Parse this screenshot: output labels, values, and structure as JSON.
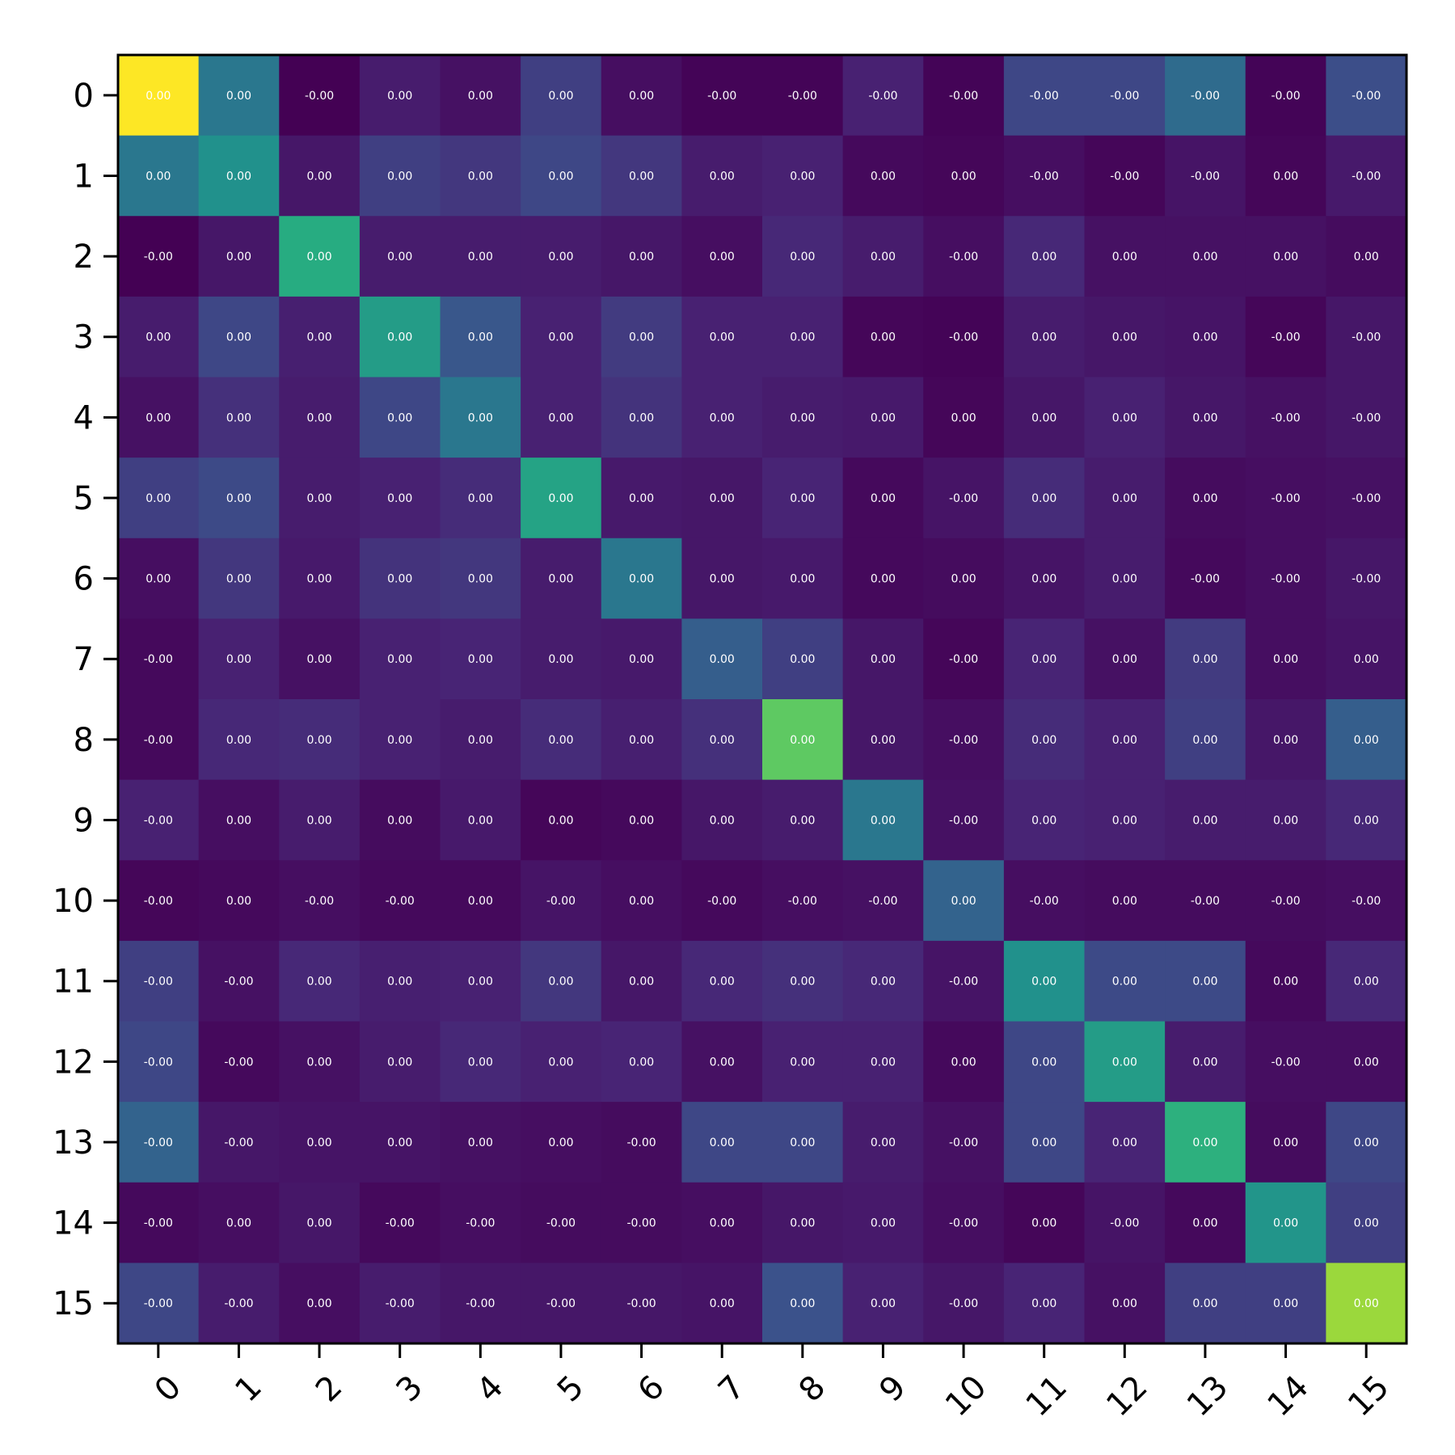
{
  "chart_data": {
    "type": "heatmap",
    "title": "",
    "xlabel": "",
    "ylabel": "",
    "x_tick_labels": [
      "0",
      "1",
      "2",
      "3",
      "4",
      "5",
      "6",
      "7",
      "8",
      "9",
      "10",
      "11",
      "12",
      "13",
      "14",
      "15"
    ],
    "y_tick_labels": [
      "0",
      "1",
      "2",
      "3",
      "4",
      "5",
      "6",
      "7",
      "8",
      "9",
      "10",
      "11",
      "12",
      "13",
      "14",
      "15"
    ],
    "colormap": "viridis",
    "value_range": [
      0,
      1
    ],
    "intensity": [
      [
        1.0,
        0.4,
        0.0,
        0.1,
        0.06,
        0.2,
        0.05,
        0.01,
        0.01,
        0.12,
        0.01,
        0.22,
        0.22,
        0.35,
        0.01,
        0.24
      ],
      [
        0.4,
        0.5,
        0.08,
        0.2,
        0.18,
        0.22,
        0.18,
        0.1,
        0.12,
        0.03,
        0.02,
        0.05,
        0.02,
        0.07,
        0.02,
        0.09
      ],
      [
        0.0,
        0.08,
        0.62,
        0.1,
        0.1,
        0.1,
        0.08,
        0.05,
        0.14,
        0.1,
        0.05,
        0.14,
        0.06,
        0.06,
        0.06,
        0.04
      ],
      [
        0.1,
        0.22,
        0.11,
        0.55,
        0.27,
        0.12,
        0.19,
        0.12,
        0.12,
        0.02,
        0.01,
        0.1,
        0.08,
        0.07,
        0.02,
        0.08
      ],
      [
        0.06,
        0.16,
        0.1,
        0.22,
        0.4,
        0.12,
        0.17,
        0.12,
        0.1,
        0.09,
        0.02,
        0.08,
        0.12,
        0.08,
        0.06,
        0.08
      ],
      [
        0.2,
        0.23,
        0.1,
        0.12,
        0.15,
        0.58,
        0.09,
        0.08,
        0.13,
        0.03,
        0.07,
        0.15,
        0.1,
        0.04,
        0.05,
        0.06
      ],
      [
        0.05,
        0.18,
        0.09,
        0.17,
        0.18,
        0.1,
        0.4,
        0.08,
        0.09,
        0.03,
        0.04,
        0.07,
        0.1,
        0.03,
        0.05,
        0.08
      ],
      [
        0.03,
        0.12,
        0.06,
        0.12,
        0.13,
        0.1,
        0.09,
        0.3,
        0.2,
        0.08,
        0.02,
        0.13,
        0.06,
        0.19,
        0.05,
        0.07
      ],
      [
        0.03,
        0.14,
        0.15,
        0.12,
        0.1,
        0.15,
        0.11,
        0.16,
        0.75,
        0.08,
        0.05,
        0.15,
        0.12,
        0.2,
        0.08,
        0.3
      ],
      [
        0.12,
        0.05,
        0.1,
        0.04,
        0.09,
        0.02,
        0.03,
        0.08,
        0.1,
        0.4,
        0.06,
        0.13,
        0.12,
        0.1,
        0.1,
        0.14
      ],
      [
        0.02,
        0.03,
        0.05,
        0.03,
        0.03,
        0.07,
        0.05,
        0.03,
        0.05,
        0.06,
        0.32,
        0.05,
        0.04,
        0.04,
        0.04,
        0.05
      ],
      [
        0.2,
        0.06,
        0.14,
        0.11,
        0.12,
        0.18,
        0.08,
        0.14,
        0.16,
        0.14,
        0.07,
        0.5,
        0.23,
        0.23,
        0.03,
        0.14
      ],
      [
        0.22,
        0.03,
        0.06,
        0.1,
        0.14,
        0.12,
        0.13,
        0.06,
        0.12,
        0.12,
        0.03,
        0.22,
        0.55,
        0.1,
        0.05,
        0.05
      ],
      [
        0.32,
        0.08,
        0.07,
        0.07,
        0.06,
        0.05,
        0.04,
        0.22,
        0.22,
        0.1,
        0.06,
        0.22,
        0.13,
        0.64,
        0.04,
        0.22
      ],
      [
        0.03,
        0.05,
        0.08,
        0.03,
        0.05,
        0.04,
        0.04,
        0.05,
        0.08,
        0.09,
        0.05,
        0.02,
        0.07,
        0.03,
        0.52,
        0.2
      ],
      [
        0.22,
        0.1,
        0.05,
        0.1,
        0.08,
        0.08,
        0.08,
        0.07,
        0.25,
        0.12,
        0.08,
        0.13,
        0.06,
        0.2,
        0.2,
        0.85
      ]
    ],
    "cell_labels": [
      [
        "0.00",
        "0.00",
        "-0.00",
        "0.00",
        "0.00",
        "0.00",
        "0.00",
        "-0.00",
        "-0.00",
        "-0.00",
        "-0.00",
        "-0.00",
        "-0.00",
        "-0.00",
        "-0.00",
        "-0.00"
      ],
      [
        "0.00",
        "0.00",
        "0.00",
        "0.00",
        "0.00",
        "0.00",
        "0.00",
        "0.00",
        "0.00",
        "0.00",
        "0.00",
        "-0.00",
        "-0.00",
        "-0.00",
        "0.00",
        "-0.00"
      ],
      [
        "-0.00",
        "0.00",
        "0.00",
        "0.00",
        "0.00",
        "0.00",
        "0.00",
        "0.00",
        "0.00",
        "0.00",
        "-0.00",
        "0.00",
        "0.00",
        "0.00",
        "0.00",
        "0.00"
      ],
      [
        "0.00",
        "0.00",
        "0.00",
        "0.00",
        "0.00",
        "0.00",
        "0.00",
        "0.00",
        "0.00",
        "0.00",
        "-0.00",
        "0.00",
        "0.00",
        "0.00",
        "-0.00",
        "-0.00"
      ],
      [
        "0.00",
        "0.00",
        "0.00",
        "0.00",
        "0.00",
        "0.00",
        "0.00",
        "0.00",
        "0.00",
        "0.00",
        "0.00",
        "0.00",
        "0.00",
        "0.00",
        "-0.00",
        "-0.00"
      ],
      [
        "0.00",
        "0.00",
        "0.00",
        "0.00",
        "0.00",
        "0.00",
        "0.00",
        "0.00",
        "0.00",
        "0.00",
        "-0.00",
        "0.00",
        "0.00",
        "0.00",
        "-0.00",
        "-0.00"
      ],
      [
        "0.00",
        "0.00",
        "0.00",
        "0.00",
        "0.00",
        "0.00",
        "0.00",
        "0.00",
        "0.00",
        "0.00",
        "0.00",
        "0.00",
        "0.00",
        "-0.00",
        "-0.00",
        "-0.00"
      ],
      [
        "-0.00",
        "0.00",
        "0.00",
        "0.00",
        "0.00",
        "0.00",
        "0.00",
        "0.00",
        "0.00",
        "0.00",
        "-0.00",
        "0.00",
        "0.00",
        "0.00",
        "0.00",
        "0.00"
      ],
      [
        "-0.00",
        "0.00",
        "0.00",
        "0.00",
        "0.00",
        "0.00",
        "0.00",
        "0.00",
        "0.00",
        "0.00",
        "-0.00",
        "0.00",
        "0.00",
        "0.00",
        "0.00",
        "0.00"
      ],
      [
        "-0.00",
        "0.00",
        "0.00",
        "0.00",
        "0.00",
        "0.00",
        "0.00",
        "0.00",
        "0.00",
        "0.00",
        "-0.00",
        "0.00",
        "0.00",
        "0.00",
        "0.00",
        "0.00"
      ],
      [
        "-0.00",
        "0.00",
        "-0.00",
        "-0.00",
        "0.00",
        "-0.00",
        "0.00",
        "-0.00",
        "-0.00",
        "-0.00",
        "0.00",
        "-0.00",
        "0.00",
        "-0.00",
        "-0.00",
        "-0.00"
      ],
      [
        "-0.00",
        "-0.00",
        "0.00",
        "0.00",
        "0.00",
        "0.00",
        "0.00",
        "0.00",
        "0.00",
        "0.00",
        "-0.00",
        "0.00",
        "0.00",
        "0.00",
        "0.00",
        "0.00"
      ],
      [
        "-0.00",
        "-0.00",
        "0.00",
        "0.00",
        "0.00",
        "0.00",
        "0.00",
        "0.00",
        "0.00",
        "0.00",
        "0.00",
        "0.00",
        "0.00",
        "0.00",
        "-0.00",
        "0.00"
      ],
      [
        "-0.00",
        "-0.00",
        "0.00",
        "0.00",
        "0.00",
        "0.00",
        "-0.00",
        "0.00",
        "0.00",
        "0.00",
        "-0.00",
        "0.00",
        "0.00",
        "0.00",
        "0.00",
        "0.00"
      ],
      [
        "-0.00",
        "0.00",
        "0.00",
        "-0.00",
        "-0.00",
        "-0.00",
        "-0.00",
        "0.00",
        "0.00",
        "0.00",
        "-0.00",
        "0.00",
        "-0.00",
        "0.00",
        "0.00",
        "0.00"
      ],
      [
        "-0.00",
        "-0.00",
        "0.00",
        "-0.00",
        "-0.00",
        "-0.00",
        "-0.00",
        "0.00",
        "0.00",
        "0.00",
        "-0.00",
        "0.00",
        "0.00",
        "0.00",
        "0.00",
        "0.00"
      ]
    ]
  }
}
